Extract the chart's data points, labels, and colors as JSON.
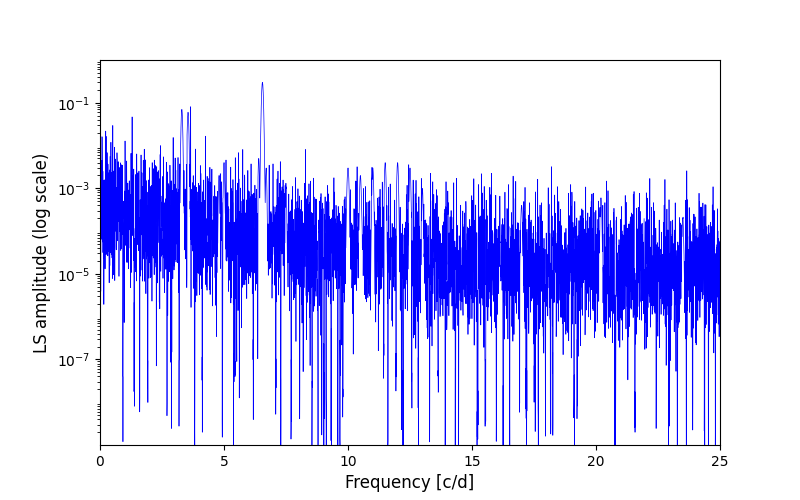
{
  "title": "",
  "xlabel": "Frequency [c/d]",
  "ylabel": "LS amplitude (log scale)",
  "xlim": [
    0,
    25
  ],
  "ylim": [
    1e-09,
    1.0
  ],
  "line_color": "#0000ff",
  "line_width": 0.5,
  "figsize": [
    8.0,
    5.0
  ],
  "dpi": 100,
  "seed": 123,
  "n_points": 5000,
  "freq_max": 25.0,
  "background_color": "#ffffff",
  "yticks": [
    1e-07,
    1e-05,
    0.001,
    0.1
  ],
  "xticks": [
    0,
    5,
    10,
    15,
    20,
    25
  ]
}
